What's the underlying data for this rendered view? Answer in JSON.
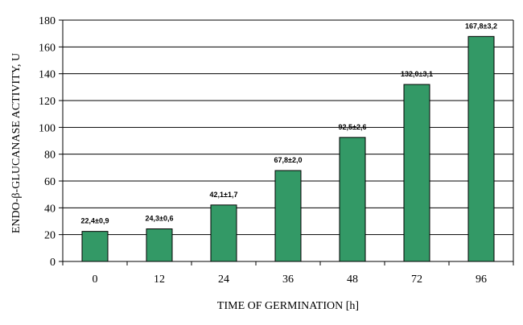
{
  "colors": {
    "bar": "#339966",
    "bar_stroke": "#000000",
    "grid": "#000000",
    "plot_bg": "#ffffff"
  },
  "chart_data": {
    "type": "bar",
    "title": "",
    "xlabel": "TIME OF GERMINATION [h]",
    "ylabel": "ENDO-β-GLUCANASE ACTIVITY, U",
    "categories": [
      "0",
      "12",
      "24",
      "36",
      "48",
      "72",
      "96"
    ],
    "values": [
      22.4,
      24.3,
      42.1,
      67.8,
      92.5,
      132.0,
      167.8
    ],
    "data_labels": [
      "22,4±0,9",
      "24,3±0,6",
      "42,1±1,7",
      "67,8±2,0",
      "92,5±2,6",
      "132,0±3,1",
      "167,8±3,2"
    ],
    "ylim": [
      0,
      180
    ],
    "yticks": [
      0,
      20,
      40,
      60,
      80,
      100,
      120,
      140,
      160,
      180
    ],
    "grid": true,
    "legend": "none"
  }
}
